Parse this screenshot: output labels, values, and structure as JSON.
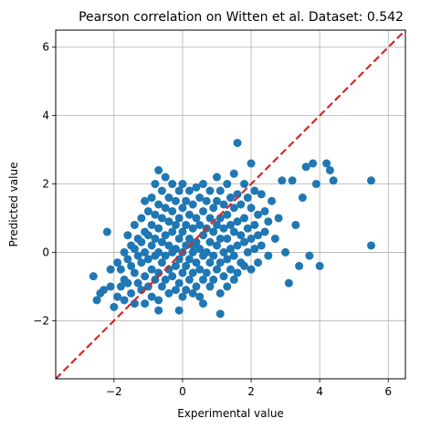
{
  "chart_data": {
    "type": "scatter",
    "title": "Pearson correlation on Witten et al. Dataset: 0.542",
    "xlabel": "Experimental value",
    "ylabel": "Predicted value",
    "xlim": [
      -3.7,
      6.5
    ],
    "ylim": [
      -3.7,
      6.5
    ],
    "xticks": [
      -2,
      0,
      2,
      4,
      6
    ],
    "yticks": [
      -2,
      0,
      2,
      4,
      6
    ],
    "grid": true,
    "legend": "none",
    "point_color": "#1f77b4",
    "reference_line": {
      "style": "dashed",
      "color": "#d62728",
      "points": [
        [
          -3.7,
          -3.7
        ],
        [
          6.5,
          6.5
        ]
      ]
    },
    "points": [
      [
        -2.6,
        -0.7
      ],
      [
        -2.5,
        -1.4
      ],
      [
        -2.4,
        -1.2
      ],
      [
        -2.3,
        -1.1
      ],
      [
        -2.2,
        0.6
      ],
      [
        -2.1,
        -1.0
      ],
      [
        -2.1,
        -0.5
      ],
      [
        -2.0,
        -1.6
      ],
      [
        -1.9,
        -1.3
      ],
      [
        -1.9,
        -0.3
      ],
      [
        -1.8,
        -1.0
      ],
      [
        -1.8,
        -0.5
      ],
      [
        -1.7,
        0.0
      ],
      [
        -1.7,
        -0.8
      ],
      [
        -1.7,
        -1.4
      ],
      [
        -1.6,
        0.5
      ],
      [
        -1.6,
        -0.2
      ],
      [
        -1.6,
        -0.9
      ],
      [
        -1.5,
        0.2
      ],
      [
        -1.5,
        -0.4
      ],
      [
        -1.5,
        -1.2
      ],
      [
        -1.4,
        0.8
      ],
      [
        -1.4,
        0.1
      ],
      [
        -1.4,
        -0.6
      ],
      [
        -1.4,
        -1.5
      ],
      [
        -1.3,
        0.4
      ],
      [
        -1.3,
        -0.1
      ],
      [
        -1.3,
        -0.9
      ],
      [
        -1.2,
        1.0
      ],
      [
        -1.2,
        0.3
      ],
      [
        -1.2,
        -0.3
      ],
      [
        -1.2,
        -1.1
      ],
      [
        -1.1,
        1.5
      ],
      [
        -1.1,
        0.6
      ],
      [
        -1.1,
        0.0
      ],
      [
        -1.1,
        -0.7
      ],
      [
        -1.1,
        -1.5
      ],
      [
        -1.0,
        1.2
      ],
      [
        -1.0,
        0.5
      ],
      [
        -1.0,
        -0.2
      ],
      [
        -1.0,
        -1.0
      ],
      [
        -0.9,
        1.6
      ],
      [
        -0.9,
        0.8
      ],
      [
        -0.9,
        0.2
      ],
      [
        -0.9,
        -0.5
      ],
      [
        -0.9,
        -1.3
      ],
      [
        -0.8,
        2.0
      ],
      [
        -0.8,
        1.1
      ],
      [
        -0.8,
        0.4
      ],
      [
        -0.8,
        -0.1
      ],
      [
        -0.8,
        -0.8
      ],
      [
        -0.7,
        2.4
      ],
      [
        -0.7,
        1.4
      ],
      [
        -0.7,
        0.7
      ],
      [
        -0.7,
        0.0
      ],
      [
        -0.7,
        -0.6
      ],
      [
        -0.7,
        -1.4
      ],
      [
        -0.6,
        1.8
      ],
      [
        -0.6,
        1.0
      ],
      [
        -0.6,
        0.3
      ],
      [
        -0.6,
        -0.3
      ],
      [
        -0.6,
        -1.0
      ],
      [
        -0.5,
        2.2
      ],
      [
        -0.5,
        1.3
      ],
      [
        -0.5,
        0.5
      ],
      [
        -0.5,
        -0.1
      ],
      [
        -0.5,
        -0.8
      ],
      [
        -0.4,
        1.6
      ],
      [
        -0.4,
        0.9
      ],
      [
        -0.4,
        0.2
      ],
      [
        -0.4,
        -0.5
      ],
      [
        -0.4,
        -1.2
      ],
      [
        -0.3,
        2.0
      ],
      [
        -0.3,
        1.2
      ],
      [
        -0.3,
        0.6
      ],
      [
        -0.3,
        0.0
      ],
      [
        -0.3,
        -0.7
      ],
      [
        -0.2,
        1.5
      ],
      [
        -0.2,
        0.8
      ],
      [
        -0.2,
        0.1
      ],
      [
        -0.2,
        -0.4
      ],
      [
        -0.2,
        -1.1
      ],
      [
        -0.1,
        1.8
      ],
      [
        -0.1,
        1.0
      ],
      [
        -0.1,
        0.4
      ],
      [
        -0.1,
        -0.2
      ],
      [
        -0.1,
        -0.9
      ],
      [
        0.0,
        2.0
      ],
      [
        0.0,
        1.3
      ],
      [
        0.0,
        0.6
      ],
      [
        0.0,
        0.0
      ],
      [
        0.0,
        -0.6
      ],
      [
        0.0,
        -1.3
      ],
      [
        0.1,
        1.5
      ],
      [
        0.1,
        0.8
      ],
      [
        0.1,
        0.2
      ],
      [
        0.1,
        -0.4
      ],
      [
        0.1,
        -1.1
      ],
      [
        0.2,
        1.8
      ],
      [
        0.2,
        1.1
      ],
      [
        0.2,
        0.4
      ],
      [
        0.2,
        -0.2
      ],
      [
        0.2,
        -0.8
      ],
      [
        0.3,
        1.4
      ],
      [
        0.3,
        0.7
      ],
      [
        0.3,
        0.0
      ],
      [
        0.3,
        -0.6
      ],
      [
        0.3,
        -1.2
      ],
      [
        0.4,
        1.9
      ],
      [
        0.4,
        1.0
      ],
      [
        0.4,
        0.3
      ],
      [
        0.4,
        -0.3
      ],
      [
        0.4,
        -1.0
      ],
      [
        0.5,
        1.6
      ],
      [
        0.5,
        0.8
      ],
      [
        0.5,
        0.1
      ],
      [
        0.5,
        -0.5
      ],
      [
        0.5,
        -1.3
      ],
      [
        0.6,
        2.0
      ],
      [
        0.6,
        1.2
      ],
      [
        0.6,
        0.5
      ],
      [
        0.6,
        -0.1
      ],
      [
        0.6,
        -0.8
      ],
      [
        0.7,
        1.5
      ],
      [
        0.7,
        0.7
      ],
      [
        0.7,
        0.0
      ],
      [
        0.7,
        -0.6
      ],
      [
        0.8,
        1.8
      ],
      [
        0.8,
        1.0
      ],
      [
        0.8,
        0.3
      ],
      [
        0.8,
        -0.3
      ],
      [
        0.8,
        -1.0
      ],
      [
        0.9,
        1.3
      ],
      [
        0.9,
        0.6
      ],
      [
        0.9,
        -0.1
      ],
      [
        0.9,
        -0.8
      ],
      [
        1.0,
        2.2
      ],
      [
        1.0,
        1.5
      ],
      [
        1.0,
        0.8
      ],
      [
        1.0,
        0.2
      ],
      [
        1.0,
        -0.5
      ],
      [
        1.1,
        1.8
      ],
      [
        1.1,
        1.0
      ],
      [
        1.1,
        0.4
      ],
      [
        1.1,
        -0.3
      ],
      [
        1.1,
        -1.2
      ],
      [
        1.2,
        1.4
      ],
      [
        1.2,
        0.7
      ],
      [
        1.2,
        0.0
      ],
      [
        1.2,
        -0.7
      ],
      [
        1.3,
        2.0
      ],
      [
        1.3,
        1.1
      ],
      [
        1.3,
        0.4
      ],
      [
        1.3,
        -0.2
      ],
      [
        1.3,
        -1.0
      ],
      [
        1.4,
        1.6
      ],
      [
        1.4,
        0.8
      ],
      [
        1.4,
        0.1
      ],
      [
        1.4,
        -0.5
      ],
      [
        1.5,
        2.3
      ],
      [
        1.5,
        1.3
      ],
      [
        1.5,
        0.6
      ],
      [
        1.5,
        -0.1
      ],
      [
        1.5,
        -0.8
      ],
      [
        1.6,
        3.2
      ],
      [
        1.6,
        1.7
      ],
      [
        1.6,
        0.9
      ],
      [
        1.6,
        0.2
      ],
      [
        1.6,
        -0.6
      ],
      [
        1.7,
        1.4
      ],
      [
        1.7,
        0.5
      ],
      [
        1.7,
        -0.3
      ],
      [
        1.8,
        2.0
      ],
      [
        1.8,
        1.0
      ],
      [
        1.8,
        0.3
      ],
      [
        1.8,
        -0.4
      ],
      [
        1.9,
        1.6
      ],
      [
        1.9,
        0.7
      ],
      [
        1.9,
        0.0
      ],
      [
        2.0,
        2.6
      ],
      [
        2.0,
        1.3
      ],
      [
        2.0,
        0.4
      ],
      [
        2.0,
        -0.5
      ],
      [
        2.1,
        1.8
      ],
      [
        2.1,
        0.8
      ],
      [
        2.1,
        0.1
      ],
      [
        2.2,
        1.1
      ],
      [
        2.2,
        0.5
      ],
      [
        2.2,
        -0.3
      ],
      [
        2.3,
        1.7
      ],
      [
        2.3,
        0.2
      ],
      [
        2.4,
        1.2
      ],
      [
        2.4,
        0.6
      ],
      [
        2.5,
        0.9
      ],
      [
        2.5,
        -0.1
      ],
      [
        2.6,
        1.5
      ],
      [
        2.7,
        0.4
      ],
      [
        2.8,
        1.0
      ],
      [
        2.9,
        2.1
      ],
      [
        3.0,
        0.0
      ],
      [
        3.1,
        -0.9
      ],
      [
        3.2,
        2.1
      ],
      [
        3.3,
        0.8
      ],
      [
        3.4,
        -0.4
      ],
      [
        3.5,
        1.6
      ],
      [
        3.6,
        2.5
      ],
      [
        3.7,
        -0.1
      ],
      [
        3.8,
        2.6
      ],
      [
        3.9,
        2.0
      ],
      [
        4.0,
        -0.4
      ],
      [
        4.2,
        2.6
      ],
      [
        4.3,
        2.4
      ],
      [
        4.4,
        2.1
      ],
      [
        5.5,
        2.1
      ],
      [
        5.5,
        0.2
      ],
      [
        -0.1,
        -1.7
      ],
      [
        0.6,
        -1.5
      ],
      [
        -0.7,
        -1.7
      ],
      [
        1.1,
        -1.8
      ],
      [
        0.3,
        0.2
      ]
    ]
  }
}
